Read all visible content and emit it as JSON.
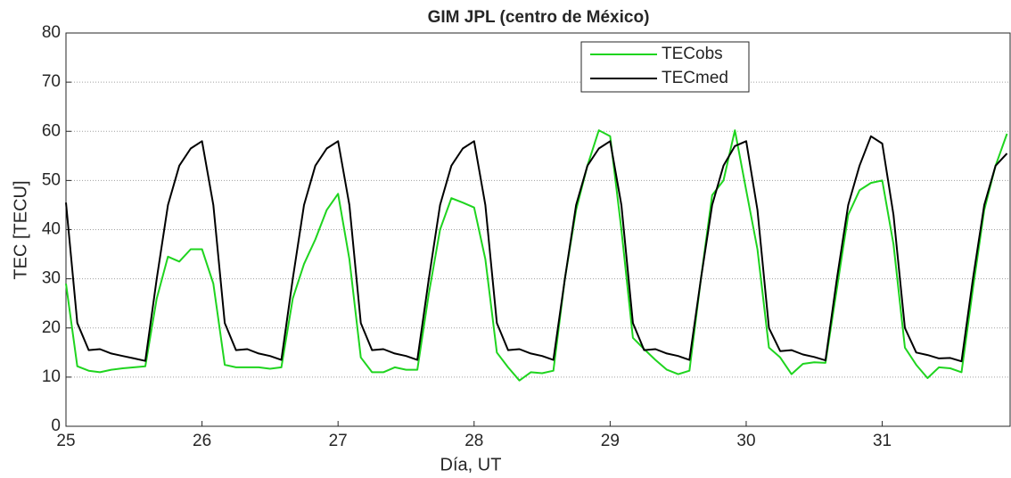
{
  "chart_data": {
    "type": "line",
    "title": "GIM JPL (centro de México)",
    "xlabel": "Día, UT",
    "ylabel": "TEC [TECU]",
    "x": [
      25,
      25.083,
      25.167,
      25.25,
      25.333,
      25.417,
      25.5,
      25.583,
      25.667,
      25.75,
      25.833,
      25.917,
      26,
      26.083,
      26.167,
      26.25,
      26.333,
      26.417,
      26.5,
      26.583,
      26.667,
      26.75,
      26.833,
      26.917,
      27,
      27.083,
      27.167,
      27.25,
      27.333,
      27.417,
      27.5,
      27.583,
      27.667,
      27.75,
      27.833,
      27.917,
      28,
      28.083,
      28.167,
      28.25,
      28.333,
      28.417,
      28.5,
      28.583,
      28.667,
      28.75,
      28.833,
      28.917,
      29,
      29.083,
      29.167,
      29.25,
      29.333,
      29.417,
      29.5,
      29.583,
      29.667,
      29.75,
      29.833,
      29.917,
      30,
      30.083,
      30.167,
      30.25,
      30.333,
      30.417,
      30.5,
      30.583,
      30.667,
      30.75,
      30.833,
      30.917,
      31,
      31.083,
      31.167,
      31.25,
      31.333,
      31.417,
      31.5,
      31.583,
      31.667,
      31.75,
      31.833,
      31.917
    ],
    "series": [
      {
        "name": "TECobs",
        "color": "#1fd41f",
        "values": [
          29,
          12.2,
          11.3,
          11,
          11.5,
          11.8,
          12,
          12.2,
          26,
          34.5,
          33.5,
          36,
          36,
          29,
          12.5,
          12,
          12,
          12,
          11.7,
          12,
          26,
          33,
          38,
          44,
          47.3,
          34,
          14,
          11,
          11,
          12,
          11.5,
          11.5,
          27,
          40,
          46.4,
          45.5,
          44.5,
          34,
          15,
          12,
          9.3,
          11,
          10.8,
          11.3,
          30,
          44,
          53,
          60.2,
          59,
          40,
          18,
          15.7,
          13.5,
          11.5,
          10.6,
          11.3,
          30,
          47,
          50,
          60.2,
          48,
          36,
          16,
          14,
          10.6,
          12.7,
          13,
          12.9,
          28,
          43,
          48,
          49.5,
          50,
          37,
          16,
          12.5,
          9.8,
          12,
          11.8,
          11,
          28,
          44,
          53,
          59.5
        ]
      },
      {
        "name": "TECmed",
        "color": "#000000",
        "values": [
          45.5,
          21,
          15.5,
          15.7,
          14.8,
          14.3,
          13.8,
          13.3,
          30,
          45,
          53,
          56.5,
          58,
          45,
          21,
          15.5,
          15.7,
          14.8,
          14.3,
          13.5,
          30,
          45,
          53,
          56.5,
          58,
          45,
          21,
          15.5,
          15.7,
          14.8,
          14.3,
          13.5,
          30,
          45,
          53,
          56.5,
          58,
          45,
          21,
          15.5,
          15.7,
          14.8,
          14.3,
          13.5,
          30,
          45,
          53,
          56.5,
          58,
          45,
          21,
          15.5,
          15.7,
          14.8,
          14.3,
          13.5,
          30,
          45,
          53,
          57,
          58,
          44,
          20,
          15.3,
          15.5,
          14.6,
          14.1,
          13.4,
          30,
          45,
          53,
          59,
          57.5,
          43,
          20,
          15,
          14.5,
          13.8,
          13.9,
          13.2,
          30,
          45,
          53,
          55.5
        ]
      }
    ],
    "xlim": [
      25,
      31.94
    ],
    "xticks": [
      25,
      26,
      27,
      28,
      29,
      30,
      31
    ],
    "ylim": [
      0,
      80
    ],
    "yticks": [
      0,
      10,
      20,
      30,
      40,
      50,
      60,
      70,
      80
    ],
    "grid": true
  }
}
